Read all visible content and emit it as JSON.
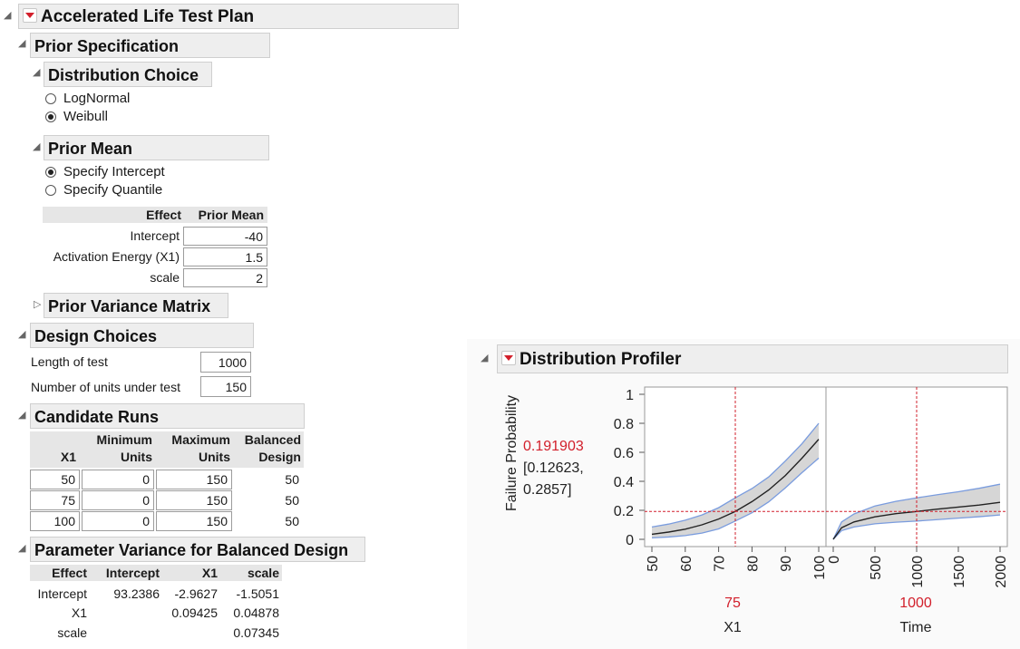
{
  "app": {
    "title": "Accelerated Life Test Plan"
  },
  "prior_spec": {
    "title": "Prior Specification",
    "distribution": {
      "title": "Distribution Choice",
      "options": [
        "LogNormal",
        "Weibull"
      ],
      "selected": "Weibull"
    },
    "prior_mean": {
      "title": "Prior Mean",
      "options": [
        "Specify Intercept",
        "Specify Quantile"
      ],
      "selected": "Specify Intercept",
      "table": {
        "headers": [
          "Effect",
          "Prior Mean"
        ],
        "rows": [
          {
            "effect": "Intercept",
            "value": "-40"
          },
          {
            "effect": "Activation Energy (X1)",
            "value": "1.5"
          },
          {
            "effect": "scale",
            "value": "2"
          }
        ]
      }
    },
    "prior_variance": {
      "title": "Prior Variance Matrix"
    }
  },
  "design_choices": {
    "title": "Design Choices",
    "length_label": "Length of test",
    "length_value": "1000",
    "units_label": "Number of units under test",
    "units_value": "150"
  },
  "candidate_runs": {
    "title": "Candidate Runs",
    "headers": {
      "x1": "X1",
      "min_1": "Minimum",
      "min_2": "Units",
      "max_1": "Maximum",
      "max_2": "Units",
      "bal_1": "Balanced",
      "bal_2": "Design"
    },
    "rows": [
      {
        "x1": "50",
        "min": "0",
        "max": "150",
        "bal": "50"
      },
      {
        "x1": "75",
        "min": "0",
        "max": "150",
        "bal": "50"
      },
      {
        "x1": "100",
        "min": "0",
        "max": "150",
        "bal": "50"
      }
    ]
  },
  "param_variance": {
    "title": "Parameter Variance for Balanced Design",
    "headers": [
      "Effect",
      "Intercept",
      "X1",
      "scale"
    ],
    "rows": [
      {
        "effect": "Intercept",
        "c1": "93.2386",
        "c2": "-2.9627",
        "c3": "-1.5051"
      },
      {
        "effect": "X1",
        "c1": "",
        "c2": "0.09425",
        "c3": "0.04878"
      },
      {
        "effect": "scale",
        "c1": "",
        "c2": "",
        "c3": "0.07345"
      }
    ]
  },
  "profiler": {
    "title": "Distribution Profiler",
    "y_label": "Failure Probability",
    "value": "0.191903",
    "ci_line1": "[0.12623,",
    "ci_line2": "0.2857]",
    "x1_label": "X1",
    "x1_current": "75",
    "time_label": "Time",
    "time_current": "1000",
    "colors": {
      "accent": "#d21f2b",
      "band": "#d6d6d6",
      "band_edge": "#7a9cde",
      "curve": "#222222"
    }
  },
  "chart_data": {
    "type": "line",
    "title": "",
    "ylabel": "Failure Probability",
    "ylim": [
      0,
      1
    ],
    "yticks": [
      "0",
      "0.2",
      "0.4",
      "0.6",
      "0.8",
      "1"
    ],
    "panels": [
      {
        "xlabel": "X1",
        "xlim": [
          50,
          100
        ],
        "xticks": [
          "50",
          "60",
          "70",
          "80",
          "90",
          "100"
        ],
        "current_x": 75,
        "x": [
          50,
          55,
          60,
          65,
          70,
          75,
          80,
          85,
          90,
          95,
          100
        ],
        "y": [
          0.035,
          0.05,
          0.07,
          0.1,
          0.14,
          0.192,
          0.26,
          0.34,
          0.44,
          0.56,
          0.69
        ],
        "lower": [
          0.01,
          0.016,
          0.026,
          0.043,
          0.072,
          0.126,
          0.183,
          0.258,
          0.355,
          0.46,
          0.56
        ],
        "upper": [
          0.085,
          0.105,
          0.132,
          0.168,
          0.218,
          0.286,
          0.35,
          0.43,
          0.54,
          0.66,
          0.8
        ]
      },
      {
        "xlabel": "Time",
        "xlim": [
          0,
          2000
        ],
        "xticks": [
          "0",
          "500",
          "1000",
          "1500",
          "2000"
        ],
        "current_x": 1000,
        "x": [
          0,
          100,
          250,
          500,
          750,
          1000,
          1250,
          1500,
          1750,
          2000
        ],
        "y": [
          0.0,
          0.08,
          0.12,
          0.155,
          0.177,
          0.192,
          0.208,
          0.222,
          0.236,
          0.255
        ],
        "lower": [
          0.0,
          0.06,
          0.085,
          0.107,
          0.118,
          0.126,
          0.136,
          0.146,
          0.156,
          0.168
        ],
        "upper": [
          0.0,
          0.12,
          0.175,
          0.23,
          0.262,
          0.286,
          0.308,
          0.328,
          0.352,
          0.38
        ]
      }
    ],
    "current_y": 0.191903
  }
}
